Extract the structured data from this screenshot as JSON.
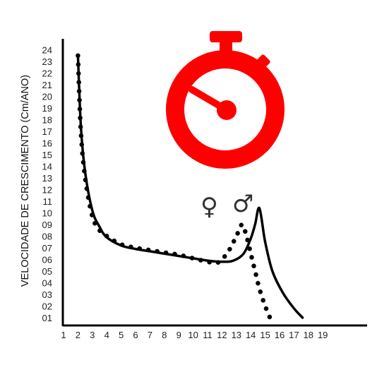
{
  "chart_data": {
    "type": "line",
    "title": "",
    "xlabel": "",
    "ylabel": "VELOCIDADE DE CRESCIMENTO (Cm/ANO)",
    "x_ticks": [
      "1",
      "2",
      "3",
      "4",
      "5",
      "6",
      "7",
      "8",
      "9",
      "10",
      "11",
      "12",
      "13",
      "14",
      "15",
      "16",
      "17",
      "18",
      "19"
    ],
    "y_ticks": [
      "01",
      "02",
      "03",
      "04",
      "05",
      "06",
      "07",
      "08",
      "09",
      "10",
      "11",
      "12",
      "13",
      "14",
      "15",
      "16",
      "17",
      "18",
      "19",
      "20",
      "21",
      "22",
      "23",
      "24"
    ],
    "xlim": [
      1,
      19
    ],
    "ylim": [
      1,
      24
    ],
    "grid": false,
    "legend": "none",
    "series": [
      {
        "name": "♂",
        "style": "solid",
        "points": [
          [
            2.0,
            23.5
          ],
          [
            2.2,
            17.5
          ],
          [
            2.5,
            13.5
          ],
          [
            3.0,
            10.2
          ],
          [
            3.5,
            8.8
          ],
          [
            4.0,
            7.9
          ],
          [
            5.0,
            7.2
          ],
          [
            6.0,
            6.9
          ],
          [
            7.0,
            6.7
          ],
          [
            8.0,
            6.5
          ],
          [
            9.0,
            6.3
          ],
          [
            10.0,
            6.1
          ],
          [
            11.0,
            5.9
          ],
          [
            12.0,
            5.8
          ],
          [
            12.8,
            5.9
          ],
          [
            13.5,
            6.5
          ],
          [
            14.0,
            7.8
          ],
          [
            14.3,
            9.0
          ],
          [
            14.6,
            10.4
          ],
          [
            15.0,
            7.5
          ],
          [
            15.5,
            5.0
          ],
          [
            16.2,
            3.2
          ],
          [
            17.0,
            1.8
          ],
          [
            17.6,
            1.0
          ]
        ]
      },
      {
        "name": "♀",
        "style": "dotted",
        "points": [
          [
            2.0,
            23.5
          ],
          [
            2.2,
            17.0
          ],
          [
            2.5,
            13.0
          ],
          [
            3.0,
            9.7
          ],
          [
            3.5,
            8.5
          ],
          [
            4.0,
            8.0
          ],
          [
            5.0,
            7.3
          ],
          [
            6.0,
            7.0
          ],
          [
            7.0,
            6.8
          ],
          [
            8.0,
            6.6
          ],
          [
            9.0,
            6.4
          ],
          [
            10.0,
            6.1
          ],
          [
            11.0,
            5.8
          ],
          [
            11.6,
            5.7
          ],
          [
            12.0,
            6.0
          ],
          [
            12.5,
            6.8
          ],
          [
            13.0,
            8.0
          ],
          [
            13.4,
            9.0
          ],
          [
            13.7,
            8.0
          ],
          [
            14.0,
            6.5
          ],
          [
            14.3,
            5.0
          ],
          [
            14.6,
            3.5
          ],
          [
            15.0,
            2.0
          ],
          [
            15.4,
            0.8
          ]
        ]
      }
    ],
    "colors": {
      "curve": "#000000",
      "stopwatch": "#ff0000"
    },
    "icons": [
      "stopwatch-icon",
      "female-symbol",
      "male-symbol"
    ]
  },
  "annotations": {
    "female_symbol": "♀",
    "male_symbol": "♂"
  }
}
